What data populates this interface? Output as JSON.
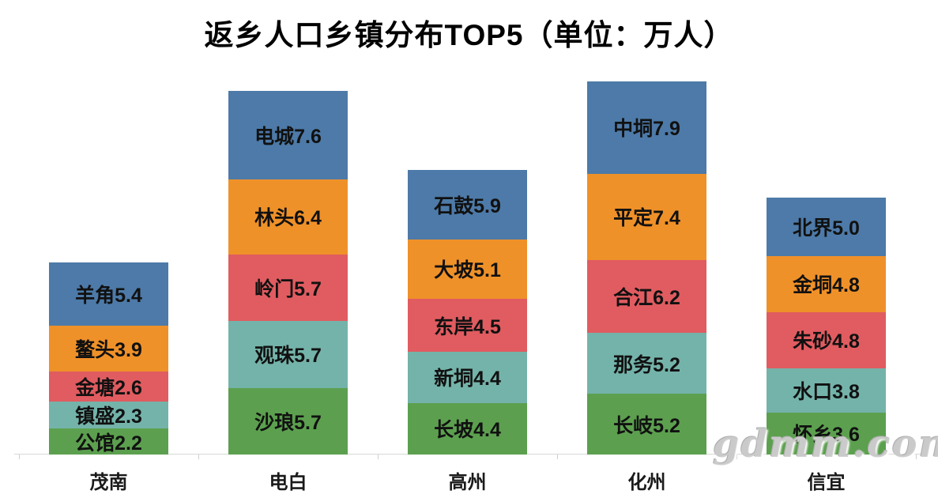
{
  "title": "返乡人口乡镇分布TOP5（单位：万人）",
  "watermark": "gdmm.com",
  "chart_data": {
    "type": "bar",
    "stacked": true,
    "title": "返乡人口乡镇分布TOP5（单位：万人）",
    "unit": "万人",
    "xlabel": "",
    "ylabel": "",
    "grid": false,
    "legend": "none",
    "categories": [
      "茂南",
      "电白",
      "高州",
      "化州",
      "信宜"
    ],
    "segment_colors": [
      "#4d7aa8",
      "#ef9129",
      "#e05c60",
      "#74b3aa",
      "#5ca04f"
    ],
    "axis_color": "#d9d9d9",
    "label_color": "#111111",
    "bars": [
      {
        "category": "茂南",
        "total": 16.4,
        "segments": [
          {
            "name": "羊角",
            "value": 5.4
          },
          {
            "name": "鳌头",
            "value": 3.9
          },
          {
            "name": "金塘",
            "value": 2.6
          },
          {
            "name": "镇盛",
            "value": 2.3
          },
          {
            "name": "公馆",
            "value": 2.2
          }
        ]
      },
      {
        "category": "电白",
        "total": 31.1,
        "segments": [
          {
            "name": "电城",
            "value": 7.6
          },
          {
            "name": "林头",
            "value": 6.4
          },
          {
            "name": "岭门",
            "value": 5.7
          },
          {
            "name": "观珠",
            "value": 5.7
          },
          {
            "name": "沙琅",
            "value": 5.7
          }
        ]
      },
      {
        "category": "高州",
        "total": 24.3,
        "segments": [
          {
            "name": "石鼓",
            "value": 5.9
          },
          {
            "name": "大坡",
            "value": 5.1
          },
          {
            "name": "东岸",
            "value": 4.5
          },
          {
            "name": "新垌",
            "value": 4.4
          },
          {
            "name": "长坡",
            "value": 4.4
          }
        ]
      },
      {
        "category": "化州",
        "total": 31.9,
        "segments": [
          {
            "name": "中垌",
            "value": 7.9
          },
          {
            "name": "平定",
            "value": 7.4
          },
          {
            "name": "合江",
            "value": 6.2
          },
          {
            "name": "那务",
            "value": 5.2
          },
          {
            "name": "长岐",
            "value": 5.2
          }
        ]
      },
      {
        "category": "信宜",
        "total": 22.0,
        "segments": [
          {
            "name": "北界",
            "value": 5.0
          },
          {
            "name": "金垌",
            "value": 4.8
          },
          {
            "name": "朱砂",
            "value": 4.8
          },
          {
            "name": "水口",
            "value": 3.8
          },
          {
            "name": "怀乡",
            "value": 3.6
          }
        ]
      }
    ]
  }
}
